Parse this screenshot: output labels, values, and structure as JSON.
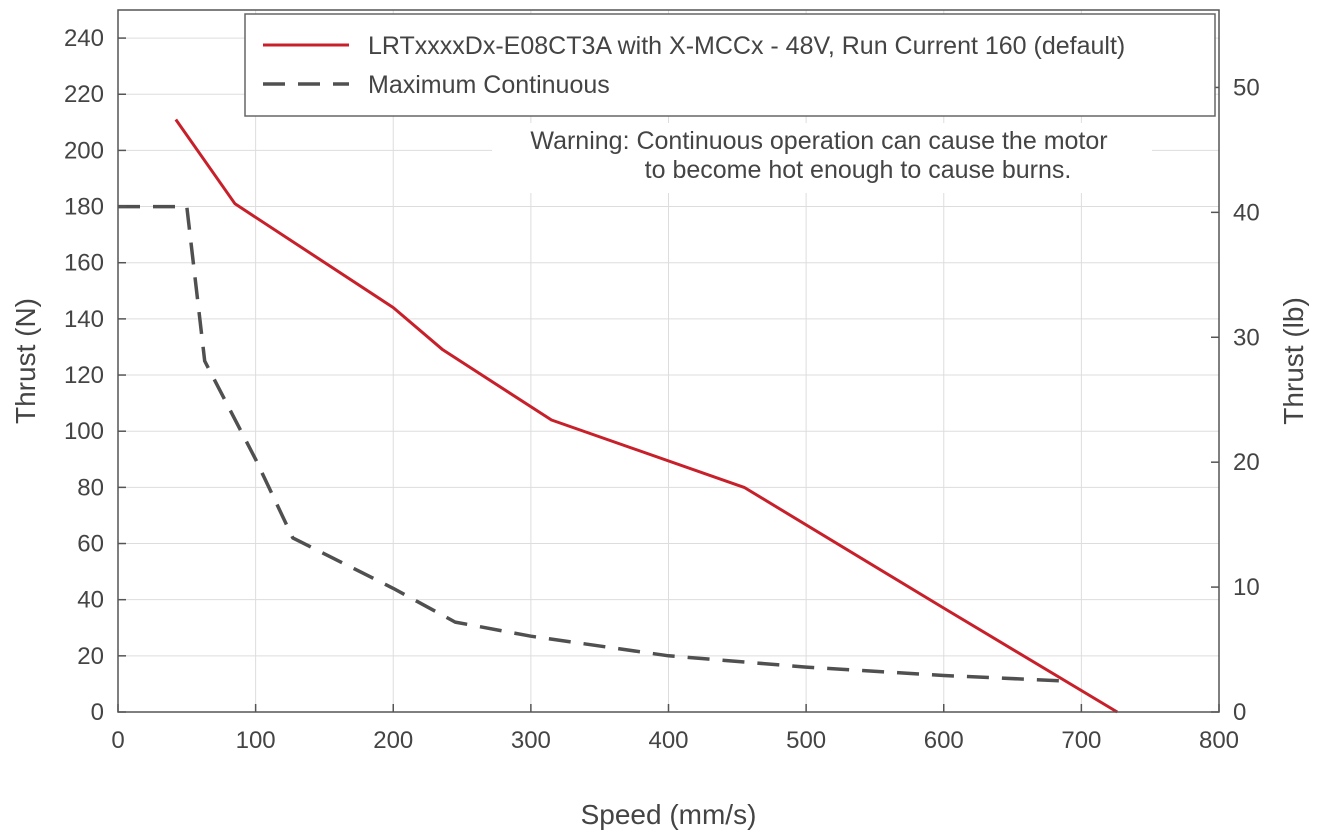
{
  "chart_data": {
    "type": "line",
    "xlabel": "Speed (mm/s)",
    "ylabel": "Thrust (N)",
    "y2label": "Thrust (lb)",
    "xlim": [
      0,
      800
    ],
    "ylim": [
      0,
      250
    ],
    "y2lim": [
      0,
      56.2
    ],
    "xticks": [
      "0",
      "100",
      "200",
      "300",
      "400",
      "500",
      "600",
      "700",
      "800"
    ],
    "yticks": [
      "0",
      "20",
      "40",
      "60",
      "80",
      "100",
      "120",
      "140",
      "160",
      "180",
      "200",
      "220",
      "240"
    ],
    "y2ticks": [
      "0",
      "10",
      "20",
      "30",
      "40",
      "50"
    ],
    "grid": true,
    "legend_position": "top-right",
    "annotation": [
      "Warning: Continuous operation can cause the motor",
      "to become hot enough to cause burns."
    ],
    "series": [
      {
        "name": "LRTxxxxDx-E08CT3A with X-MCCx - 48V, Run Current 160 (default)",
        "style": "solid",
        "color": "#c8202a",
        "x": [
          42,
          85,
          200,
          236,
          315,
          455,
          600,
          726
        ],
        "y": [
          211,
          181,
          144,
          129,
          104,
          80,
          37,
          0
        ]
      },
      {
        "name": "Maximum Continuous",
        "style": "dashed",
        "color": "#505050",
        "x": [
          0,
          50,
          63,
          100,
          127,
          200,
          245,
          300,
          400,
          500,
          600,
          690
        ],
        "y": [
          180,
          180,
          125,
          90,
          62,
          44,
          32,
          27,
          20,
          16,
          13,
          11
        ]
      }
    ]
  }
}
